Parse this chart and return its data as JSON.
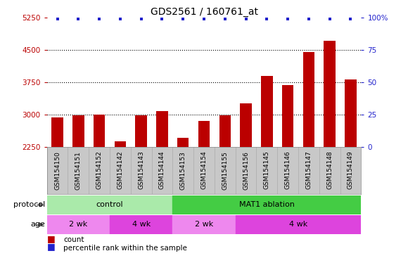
{
  "title": "GDS2561 / 160761_at",
  "samples": [
    "GSM154150",
    "GSM154151",
    "GSM154152",
    "GSM154142",
    "GSM154143",
    "GSM154144",
    "GSM154153",
    "GSM154154",
    "GSM154155",
    "GSM154156",
    "GSM154145",
    "GSM154146",
    "GSM154147",
    "GSM154148",
    "GSM154149"
  ],
  "counts": [
    2940,
    2980,
    3005,
    2380,
    2990,
    3080,
    2460,
    2850,
    2995,
    3260,
    3900,
    3680,
    4450,
    4720,
    3820
  ],
  "percentile_ranks": [
    99,
    99,
    99,
    99,
    99,
    99,
    99,
    99,
    99,
    99,
    99,
    99,
    99,
    99,
    99
  ],
  "ylim_left": [
    2250,
    5250
  ],
  "ylim_right": [
    0,
    100
  ],
  "yticks_left": [
    2250,
    3000,
    3750,
    4500,
    5250
  ],
  "yticks_right": [
    0,
    25,
    50,
    75,
    100
  ],
  "ytick_right_labels": [
    "0",
    "25",
    "50",
    "75",
    "100%"
  ],
  "bar_color": "#bb0000",
  "dot_color": "#2222cc",
  "bg_color": "#ffffff",
  "xtick_bg_color": "#c8c8c8",
  "protocol_groups": [
    {
      "label": "control",
      "start": 0,
      "end": 6,
      "color": "#aaeaaa"
    },
    {
      "label": "MAT1 ablation",
      "start": 6,
      "end": 15,
      "color": "#44cc44"
    }
  ],
  "age_groups": [
    {
      "label": "2 wk",
      "start": 0,
      "end": 3,
      "color": "#ee88ee"
    },
    {
      "label": "4 wk",
      "start": 3,
      "end": 6,
      "color": "#dd44dd"
    },
    {
      "label": "2 wk",
      "start": 6,
      "end": 9,
      "color": "#ee88ee"
    },
    {
      "label": "4 wk",
      "start": 9,
      "end": 15,
      "color": "#dd44dd"
    }
  ],
  "legend_count_color": "#bb0000",
  "legend_dot_color": "#2222cc",
  "title_fontsize": 10,
  "tick_fontsize": 7.5,
  "bar_fontsize": 6.5,
  "proto_fontsize": 8,
  "legend_fontsize": 7.5
}
